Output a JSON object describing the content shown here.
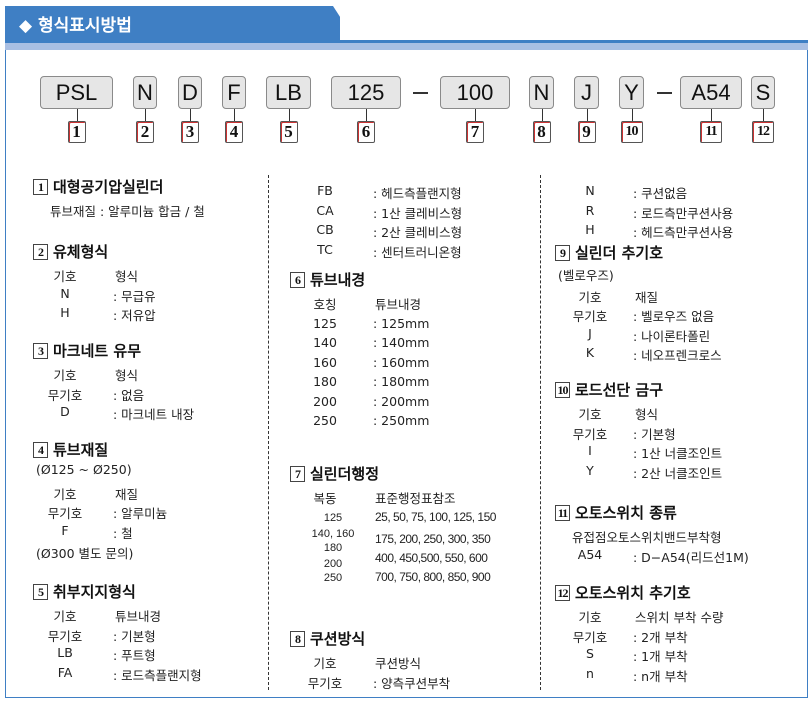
{
  "header": {
    "title": "◆ 형식표시방법"
  },
  "code": {
    "boxes": [
      "PSL",
      "N",
      "D",
      "F",
      "LB",
      "125",
      "100",
      "N",
      "J",
      "Y",
      "A54",
      "S"
    ],
    "numbers": [
      "1",
      "2",
      "3",
      "4",
      "5",
      "6",
      "7",
      "8",
      "9",
      "10",
      "11",
      "12"
    ]
  },
  "sections": [
    {
      "num": "1",
      "title": "대형공기압실린더",
      "notes": [
        "튜브재질 : 알루미늄 합금 / 철"
      ],
      "rows": []
    },
    {
      "num": "2",
      "title": "유체형식",
      "header": [
        "기호",
        "형식"
      ],
      "rows": [
        [
          "N",
          ": 무급유"
        ],
        [
          "H",
          ": 저유압"
        ]
      ]
    },
    {
      "num": "3",
      "title": "마크네트 유무",
      "header": [
        "기호",
        "형식"
      ],
      "rows": [
        [
          "무기호",
          ": 없음"
        ],
        [
          "D",
          ": 마크네트 내장"
        ]
      ]
    },
    {
      "num": "4",
      "title": "튜브재질",
      "pre": "(Ø125 ~ Ø250)",
      "header": [
        "기호",
        "재질"
      ],
      "rows": [
        [
          "무기호",
          ": 알루미늄"
        ],
        [
          "F",
          ": 철"
        ]
      ],
      "post": "(Ø300 별도 문의)"
    },
    {
      "num": "5",
      "title": "취부지지형식",
      "header": [
        "기호",
        "튜브내경"
      ],
      "rows": [
        [
          "무기호",
          ": 기본형"
        ],
        [
          "LB",
          ": 푸트형"
        ],
        [
          "FA",
          ": 로드측플랜지형"
        ],
        [
          "FB",
          ": 헤드측플랜지형"
        ],
        [
          "CA",
          ": 1산 클레비스형"
        ],
        [
          "CB",
          ": 2산 클레비스형"
        ],
        [
          "TC",
          ": 센터트러니온형"
        ]
      ]
    },
    {
      "num": "6",
      "title": "튜브내경",
      "header": [
        "호칭",
        "튜브내경"
      ],
      "rows": [
        [
          "125",
          ": 125mm"
        ],
        [
          "140",
          ": 140mm"
        ],
        [
          "160",
          ": 160mm"
        ],
        [
          "180",
          ": 180mm"
        ],
        [
          "200",
          ": 200mm"
        ],
        [
          "250",
          ": 250mm"
        ]
      ]
    },
    {
      "num": "7",
      "title": "실린더행정",
      "header": [
        "복동",
        "표준행정표참조"
      ],
      "rows": [
        [
          "125",
          "25, 50, 75, 100, 125, 150"
        ],
        [
          "140, 160",
          "175, 200, 250, 300, 350"
        ],
        [
          "180",
          "400, 450,500, 550, 600"
        ],
        [
          "200",
          ""
        ],
        [
          "250",
          "700, 750, 800, 850, 900"
        ]
      ]
    },
    {
      "num": "8",
      "title": "쿠션방식",
      "header": [
        "기호",
        "쿠션방식"
      ],
      "rows": [
        [
          "무기호",
          ": 양측쿠션부착"
        ],
        [
          "N",
          ": 쿠션없음"
        ],
        [
          "R",
          ": 로드측만쿠션사용"
        ],
        [
          "H",
          ": 헤드측만쿠션사용"
        ]
      ]
    },
    {
      "num": "9",
      "title": "실린더 추기호",
      "pre": "(벨로우즈)",
      "header": [
        "기호",
        "재질"
      ],
      "rows": [
        [
          "무기호",
          ": 벨로우즈 없음"
        ],
        [
          "J",
          ": 나이론타폴린"
        ],
        [
          "K",
          ": 네오프렌크로스"
        ]
      ]
    },
    {
      "num": "10",
      "title": "로드선단 금구",
      "header": [
        "기호",
        "형식"
      ],
      "rows": [
        [
          "무기호",
          ": 기본형"
        ],
        [
          "I",
          ": 1산 너클조인트"
        ],
        [
          "Y",
          ": 2산 너클조인트"
        ]
      ]
    },
    {
      "num": "11",
      "title": "오토스위치 종류",
      "notes": [
        "유접점오토스위치밴드부착형"
      ],
      "rows": [
        [
          "A54",
          ": D−A54(리드선1M)"
        ]
      ]
    },
    {
      "num": "12",
      "title": "오토스위치 추기호",
      "header": [
        "기호",
        "스위치 부착 수량"
      ],
      "rows": [
        [
          "무기호",
          ": 2개 부착"
        ],
        [
          "S",
          ": 1개 부착"
        ],
        [
          "n",
          ": n개 부착"
        ]
      ]
    }
  ],
  "colors": {
    "header_blue": "#3f7fc4",
    "band": "#a9bfe3",
    "box": "#e6e6e6"
  }
}
